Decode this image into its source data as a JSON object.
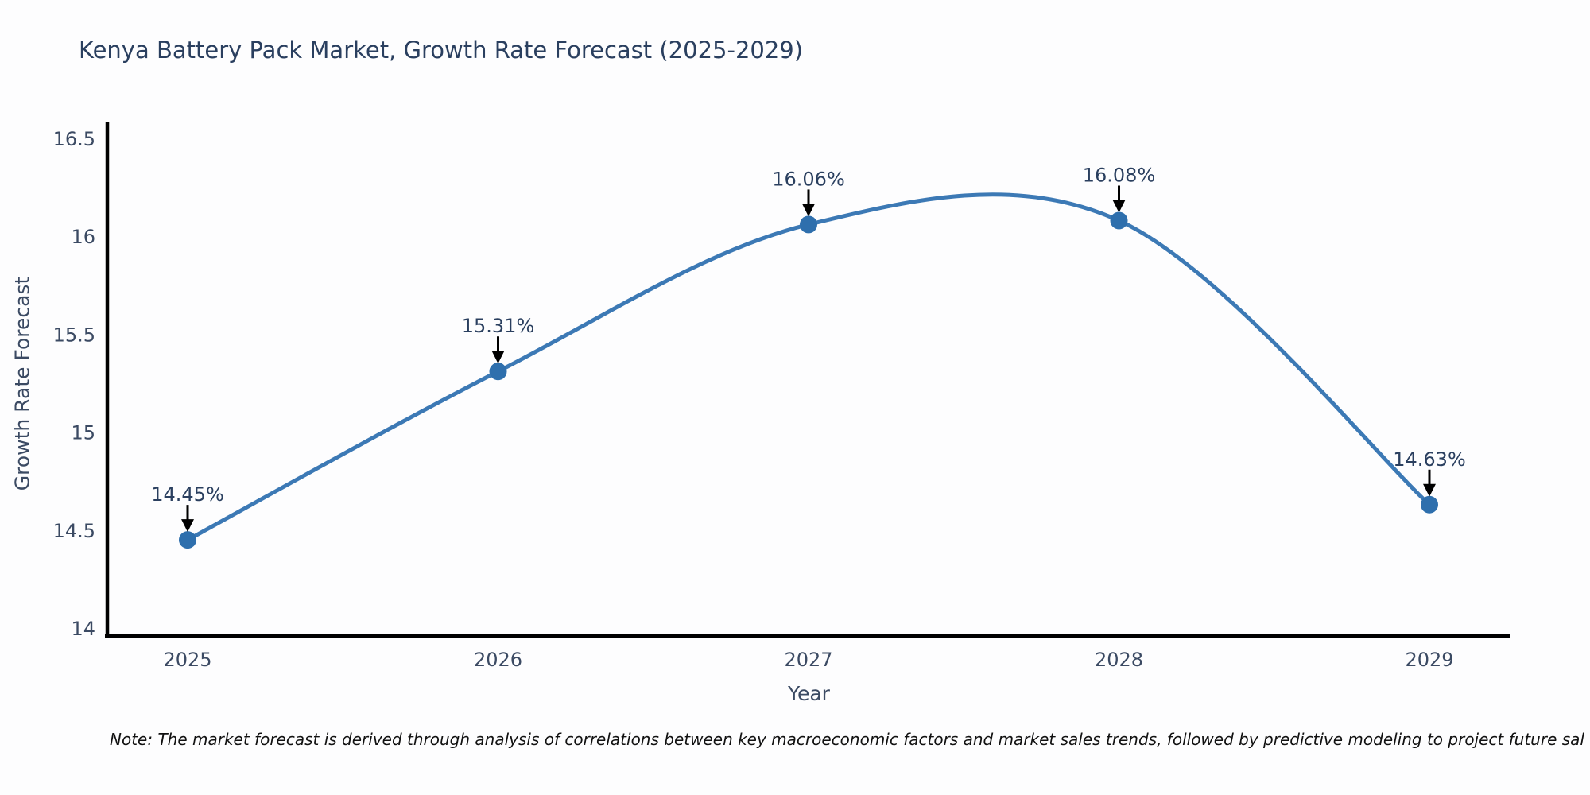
{
  "chart": {
    "title": "Kenya Battery Pack Market, Growth Rate Forecast (2025-2029)",
    "xlabel": "Year",
    "ylabel": "Growth Rate Forecast",
    "note": "Note: The market forecast is derived through analysis of correlations between key macroeconomic factors and market sales trends, followed by predictive modeling to project future sal"
  },
  "chart_data": {
    "type": "line",
    "line_shape": "spline",
    "title": "Kenya Battery Pack Market, Growth Rate Forecast (2025-2029)",
    "xlabel": "Year",
    "ylabel": "Growth Rate Forecast",
    "categories": [
      "2025",
      "2026",
      "2027",
      "2028",
      "2029"
    ],
    "series": [
      {
        "name": "Growth Rate Forecast",
        "values": [
          14.45,
          15.31,
          16.06,
          16.08,
          14.63
        ],
        "point_labels": [
          "14.45%",
          "15.31%",
          "16.06%",
          "16.08%",
          "14.63%"
        ]
      }
    ],
    "ytick_labels": [
      "14",
      "14.5",
      "15",
      "15.5",
      "16",
      "16.5"
    ],
    "ytick_values": [
      14,
      14.5,
      15,
      15.5,
      16,
      16.5
    ],
    "ylim": [
      13.94,
      16.58
    ],
    "grid": false,
    "legend_position": "none",
    "annotations_have_arrows": true,
    "colors": {
      "line": "#3c79b5",
      "marker": "#2e6fad",
      "axis": "#000000",
      "tick_text": "#3b4a63",
      "title_text": "#2a3f5f",
      "annotation_text": "#2a3f5f",
      "annotation_arrow": "#000000",
      "background": "#fdfdfe",
      "note_text": "#111111"
    }
  }
}
